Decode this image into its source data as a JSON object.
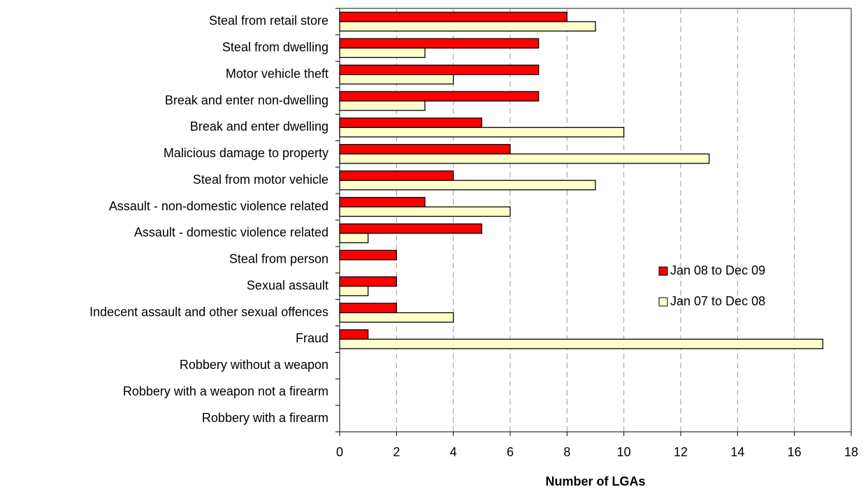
{
  "chart_data": {
    "type": "hbar",
    "xlabel": "Number of LGAs",
    "categories": [
      "Steal from retail store",
      "Steal from dwelling",
      "Motor vehicle theft",
      "Break and enter non-dwelling",
      "Break and enter dwelling",
      "Malicious damage to property",
      "Steal from motor vehicle",
      "Assault - non-domestic violence related",
      "Assault - domestic violence related",
      "Steal from person",
      "Sexual assault",
      "Indecent assault and other sexual offences",
      "Fraud",
      "Robbery without a weapon",
      "Robbery with a weapon not a firearm",
      "Robbery with a firearm"
    ],
    "series": [
      {
        "name": "Jan 08 to Dec 09",
        "color": "#ff0000",
        "values": [
          8,
          7,
          7,
          7,
          5,
          6,
          4,
          3,
          5,
          2,
          2,
          2,
          1,
          0,
          0,
          0
        ]
      },
      {
        "name": "Jan 07 to Dec 08",
        "color": "#ffffcc",
        "values": [
          9,
          3,
          4,
          3,
          10,
          13,
          9,
          6,
          1,
          0,
          1,
          4,
          17,
          0,
          0,
          0
        ]
      }
    ],
    "xlim": [
      0,
      18
    ],
    "xticks": [
      0,
      2,
      4,
      6,
      8,
      10,
      12,
      14,
      16,
      18
    ],
    "grid": true,
    "legend_position": "right"
  }
}
